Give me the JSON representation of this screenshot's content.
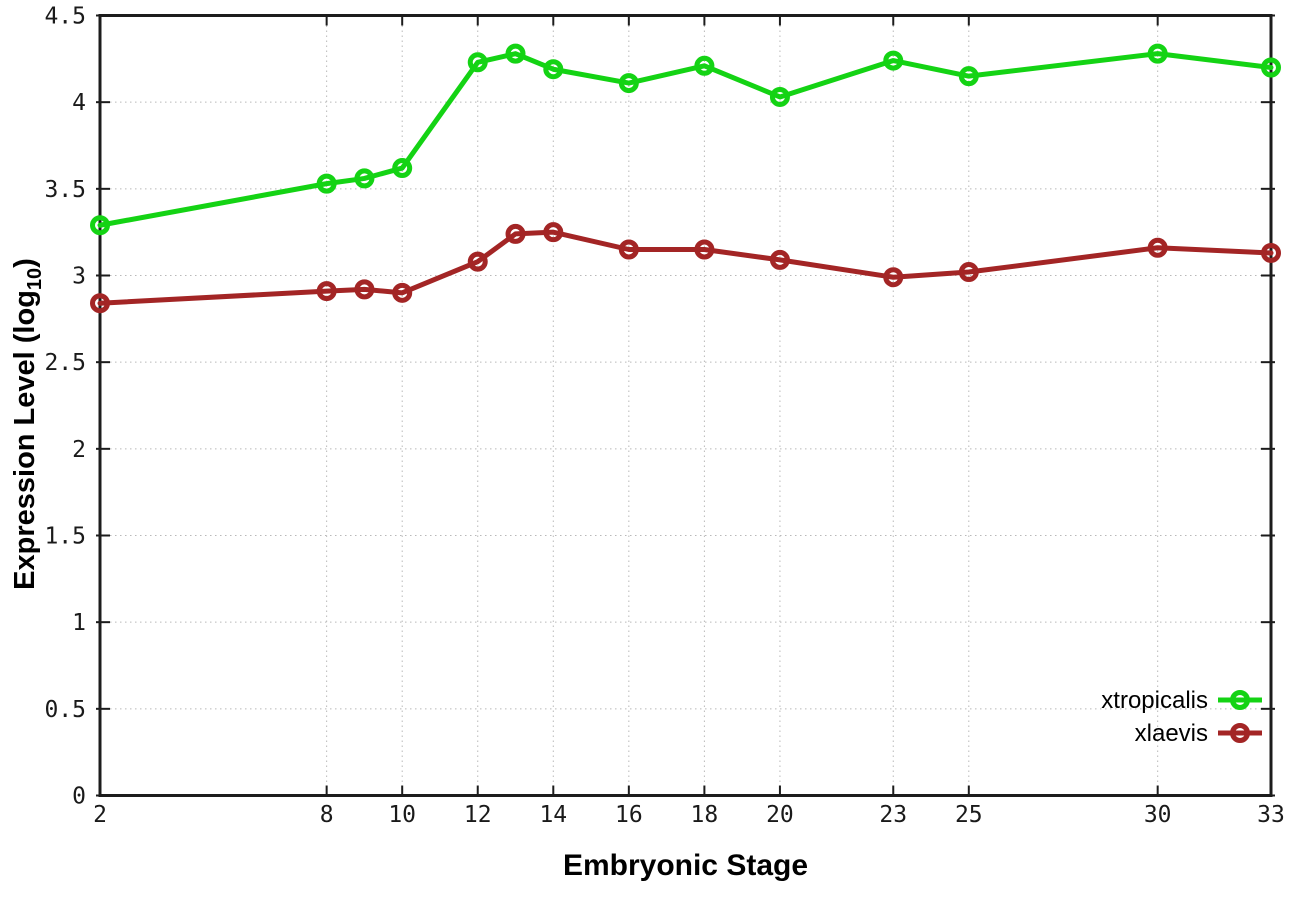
{
  "chart_data": {
    "type": "line",
    "title": "",
    "xlabel": "Embryonic Stage",
    "ylabel": {
      "pre": "Expression Level (log",
      "sub": "10",
      "post": ")"
    },
    "x": [
      2,
      8,
      9,
      10,
      12,
      13,
      14,
      16,
      18,
      20,
      23,
      25,
      30,
      33
    ],
    "series": [
      {
        "name": "xtropicalis",
        "color": "#14d314",
        "values": [
          3.29,
          3.53,
          3.56,
          3.62,
          4.23,
          4.28,
          4.19,
          4.11,
          4.21,
          4.03,
          4.24,
          4.15,
          4.28,
          4.2
        ]
      },
      {
        "name": "xlaevis",
        "color": "#a32525",
        "values": [
          2.84,
          2.91,
          2.92,
          2.9,
          3.08,
          3.24,
          3.25,
          3.15,
          3.15,
          3.09,
          2.99,
          3.02,
          3.16,
          3.13
        ]
      }
    ],
    "x_ticks": [
      "2",
      "8",
      "10",
      "12",
      "14",
      "16",
      "18",
      "20",
      "23",
      "25",
      "30",
      "33"
    ],
    "y_ticks": [
      "0",
      "0.5",
      "1",
      "1.5",
      "2",
      "2.5",
      "3",
      "3.5",
      "4",
      "4.5"
    ],
    "xlim": [
      2,
      33
    ],
    "ylim": [
      0,
      4.5
    ],
    "grid": true,
    "legend_position": "bottom-right",
    "style": {
      "axis_color": "#1c1c1c",
      "grid_color": "#b9b9b9",
      "tick_label_color": "#1a1a1a",
      "label_color": "#000000",
      "background": "#ffffff"
    }
  },
  "legend": {
    "items": [
      {
        "label": "xtropicalis"
      },
      {
        "label": "xlaevis"
      }
    ]
  }
}
